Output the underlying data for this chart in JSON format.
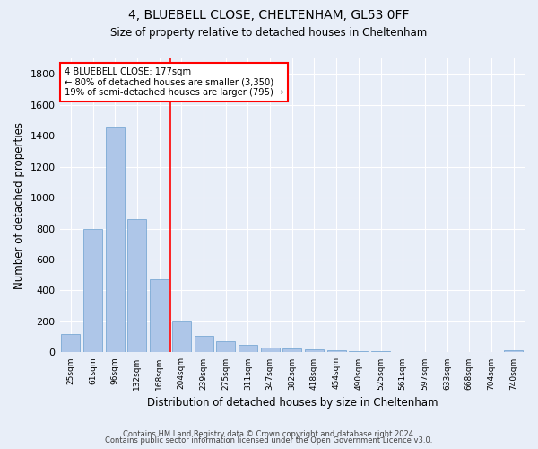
{
  "title1": "4, BLUEBELL CLOSE, CHELTENHAM, GL53 0FF",
  "title2": "Size of property relative to detached houses in Cheltenham",
  "xlabel": "Distribution of detached houses by size in Cheltenham",
  "ylabel": "Number of detached properties",
  "categories": [
    "25sqm",
    "61sqm",
    "96sqm",
    "132sqm",
    "168sqm",
    "204sqm",
    "239sqm",
    "275sqm",
    "311sqm",
    "347sqm",
    "382sqm",
    "418sqm",
    "454sqm",
    "490sqm",
    "525sqm",
    "561sqm",
    "597sqm",
    "633sqm",
    "668sqm",
    "704sqm",
    "740sqm"
  ],
  "values": [
    120,
    795,
    1460,
    860,
    475,
    200,
    105,
    70,
    50,
    30,
    25,
    20,
    15,
    10,
    8,
    5,
    3,
    2,
    1,
    1,
    15
  ],
  "bar_color": "#aec6e8",
  "bar_edge_color": "#6a9fcf",
  "bg_color": "#e8eef8",
  "grid_color": "#ffffff",
  "red_line_x": 4.5,
  "annotation_line1": "4 BLUEBELL CLOSE: 177sqm",
  "annotation_line2": "← 80% of detached houses are smaller (3,350)",
  "annotation_line3": "19% of semi-detached houses are larger (795) →",
  "footer1": "Contains HM Land Registry data © Crown copyright and database right 2024.",
  "footer2": "Contains public sector information licensed under the Open Government Licence v3.0.",
  "ylim": [
    0,
    1900
  ],
  "yticks": [
    0,
    200,
    400,
    600,
    800,
    1000,
    1200,
    1400,
    1600,
    1800
  ]
}
